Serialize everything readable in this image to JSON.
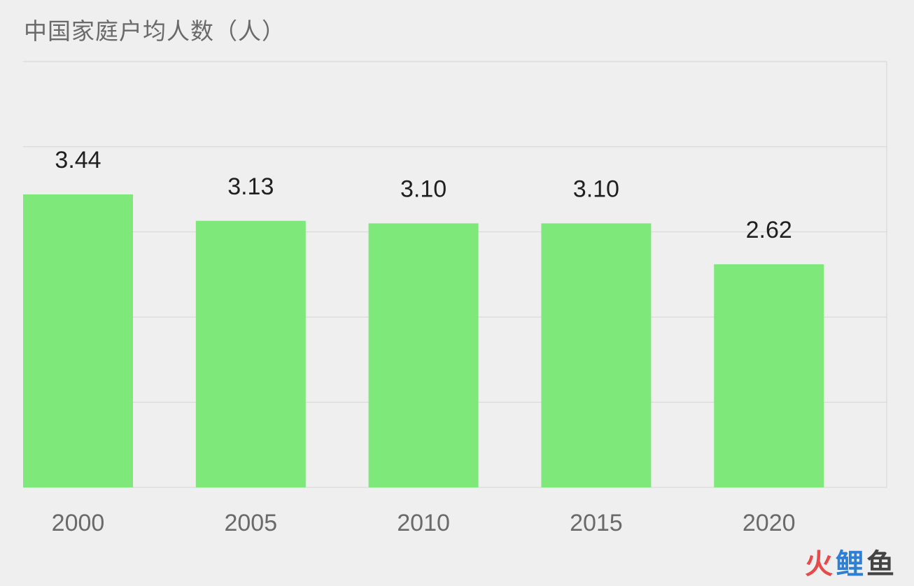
{
  "chart_data": {
    "type": "bar",
    "title": "中国家庭户均人数（人）",
    "xlabel": "",
    "ylabel": "",
    "categories": [
      "2000",
      "2005",
      "2010",
      "2015",
      "2020"
    ],
    "values": [
      3.44,
      3.13,
      3.1,
      3.1,
      2.62
    ],
    "value_labels": [
      "3.44",
      "3.13",
      "3.10",
      "3.10",
      "2.62"
    ],
    "ylim": [
      0,
      5
    ],
    "grid": true,
    "bar_color": "#7ee87a",
    "grid_color": "#d6d6d6",
    "label_color": "#1f1f1f",
    "tick_color": "#6a6a6a"
  },
  "watermark": {
    "part1": "火",
    "part2": "鲤",
    "part3": "鱼"
  }
}
